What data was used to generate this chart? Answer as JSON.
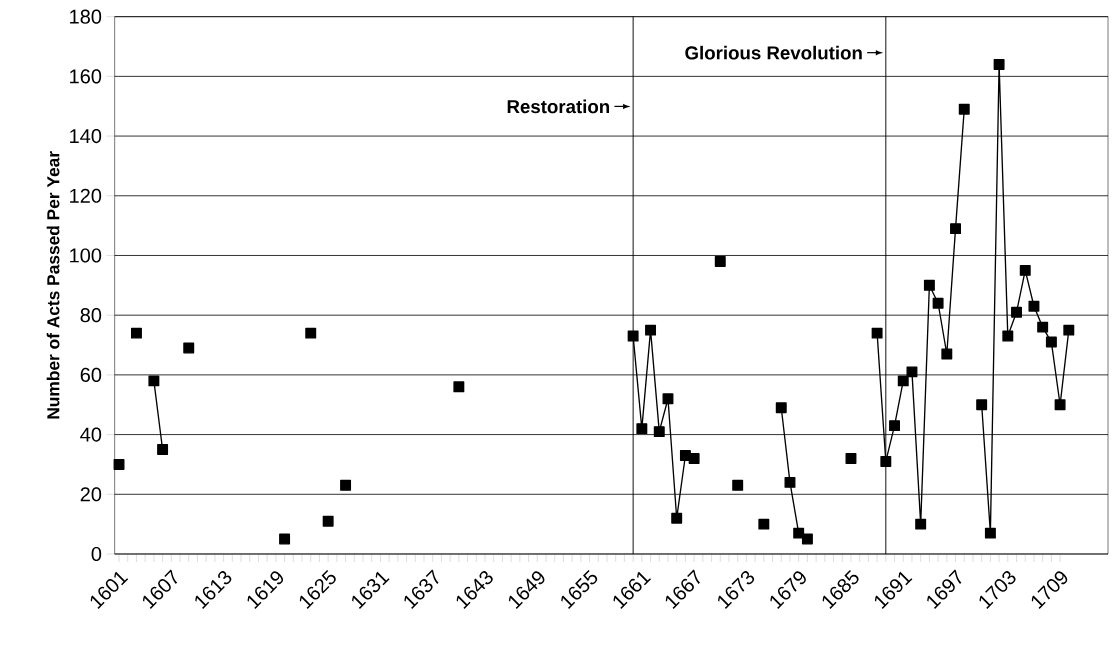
{
  "chart_data": {
    "type": "line",
    "ylabel": "Number of Acts Passed Per Year",
    "x": [
      1601,
      1602,
      1603,
      1604,
      1605,
      1606,
      1607,
      1608,
      1609,
      1610,
      1611,
      1612,
      1613,
      1614,
      1615,
      1616,
      1617,
      1618,
      1619,
      1620,
      1621,
      1622,
      1623,
      1624,
      1625,
      1626,
      1627,
      1628,
      1629,
      1630,
      1631,
      1632,
      1633,
      1634,
      1635,
      1636,
      1637,
      1638,
      1639,
      1640,
      1641,
      1642,
      1643,
      1644,
      1645,
      1646,
      1647,
      1648,
      1649,
      1650,
      1651,
      1652,
      1653,
      1654,
      1655,
      1656,
      1657,
      1658,
      1659,
      1660,
      1661,
      1662,
      1663,
      1664,
      1665,
      1666,
      1667,
      1668,
      1669,
      1670,
      1671,
      1672,
      1673,
      1674,
      1675,
      1676,
      1677,
      1678,
      1679,
      1680,
      1681,
      1682,
      1683,
      1684,
      1685,
      1686,
      1687,
      1688,
      1689,
      1690,
      1691,
      1692,
      1693,
      1694,
      1695,
      1696,
      1697,
      1698,
      1699,
      1700,
      1701,
      1702,
      1703,
      1704,
      1705,
      1706,
      1707,
      1708,
      1709,
      1710
    ],
    "series": [
      {
        "color": "#000000",
        "values": [
          30,
          null,
          74,
          null,
          58,
          35,
          null,
          null,
          69,
          null,
          null,
          null,
          null,
          null,
          null,
          null,
          null,
          null,
          null,
          5,
          null,
          null,
          74,
          null,
          11,
          null,
          23,
          null,
          null,
          null,
          null,
          null,
          null,
          null,
          null,
          null,
          null,
          null,
          null,
          56,
          null,
          null,
          null,
          null,
          null,
          null,
          null,
          null,
          null,
          null,
          null,
          null,
          null,
          null,
          null,
          null,
          null,
          null,
          null,
          73,
          42,
          75,
          41,
          52,
          12,
          33,
          32,
          null,
          null,
          98,
          null,
          23,
          null,
          null,
          10,
          null,
          49,
          24,
          7,
          5,
          null,
          null,
          null,
          null,
          32,
          null,
          null,
          74,
          31,
          43,
          58,
          61,
          10,
          90,
          84,
          67,
          109,
          149,
          null,
          50,
          7,
          164,
          73,
          81,
          95,
          83,
          76,
          71,
          50,
          75
        ]
      }
    ],
    "xlim": [
      1600.5,
      1714.5
    ],
    "xticks": [
      1601,
      1607,
      1613,
      1619,
      1625,
      1631,
      1637,
      1643,
      1649,
      1655,
      1661,
      1667,
      1673,
      1679,
      1685,
      1691,
      1697,
      1703,
      1709
    ],
    "ylim": [
      0,
      180
    ],
    "yticks": [
      0,
      20,
      40,
      60,
      80,
      100,
      120,
      140,
      160,
      180
    ],
    "ref_lines": [
      {
        "axis": "x",
        "value": 1660,
        "label": "Restoration"
      },
      {
        "axis": "x",
        "value": 1689,
        "label": "Glorious Revolution"
      }
    ],
    "grid": "y",
    "marker": "square",
    "line_style": "solid"
  }
}
